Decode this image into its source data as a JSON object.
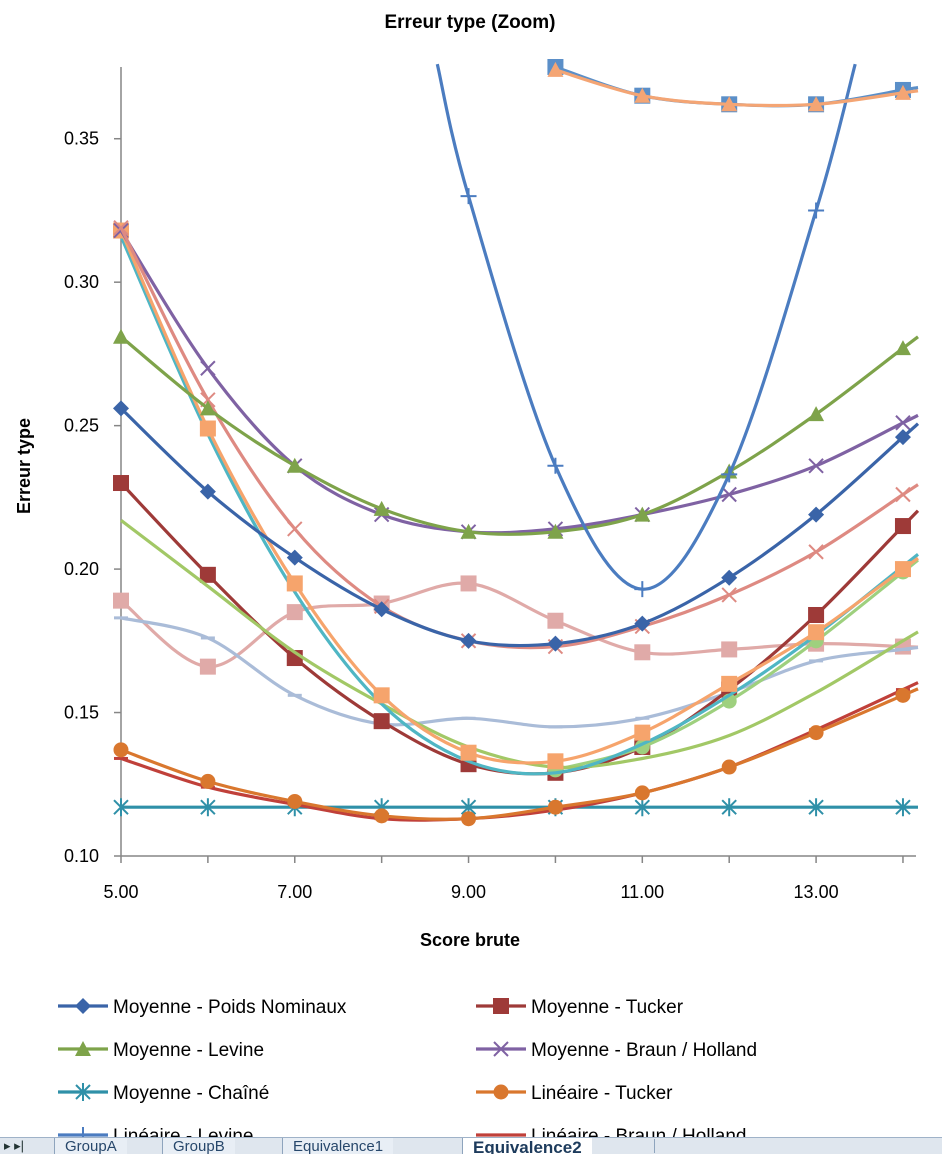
{
  "chart_data": {
    "type": "line",
    "title": "Erreur type (Zoom)",
    "xlabel": "Score brute",
    "ylabel": "Erreur type",
    "xlim": [
      5,
      14.15
    ],
    "ylim": [
      0.1,
      0.375
    ],
    "x_ticks": [
      "5.00",
      "7.00",
      "9.00",
      "11.00",
      "13.00"
    ],
    "y_ticks": [
      "0.10",
      "0.15",
      "0.20",
      "0.25",
      "0.30",
      "0.35"
    ],
    "x_tick_values": [
      5,
      7,
      9,
      11,
      13
    ],
    "y_tick_values": [
      0.1,
      0.15,
      0.2,
      0.25,
      0.3,
      0.35
    ],
    "grid": false,
    "legend_position": "bottom",
    "series": [
      {
        "name": "Moyenne - Poids Nominaux",
        "color": "#3a64a8",
        "marker": "diamond",
        "x": [
          5,
          6,
          7,
          8,
          9,
          10,
          11,
          12,
          13,
          14
        ],
        "y": [
          0.256,
          0.227,
          0.204,
          0.186,
          0.175,
          0.174,
          0.181,
          0.197,
          0.219,
          0.246
        ]
      },
      {
        "name": "Moyenne - Tucker",
        "color": "#9e3a38",
        "marker": "square",
        "x": [
          5,
          6,
          7,
          8,
          9,
          10,
          11,
          12,
          13,
          14
        ],
        "y": [
          0.23,
          0.198,
          0.169,
          0.147,
          0.132,
          0.129,
          0.138,
          0.158,
          0.184,
          0.215
        ]
      },
      {
        "name": "Moyenne - Levine",
        "color": "#7ea34a",
        "marker": "triangle",
        "x": [
          5,
          6,
          7,
          8,
          9,
          10,
          11,
          12,
          13,
          14
        ],
        "y": [
          0.281,
          0.256,
          0.236,
          0.221,
          0.213,
          0.213,
          0.219,
          0.234,
          0.254,
          0.277
        ]
      },
      {
        "name": "Moyenne - Braun / Holland",
        "color": "#7f62a3",
        "marker": "x",
        "x": [
          5,
          6,
          7,
          8,
          9,
          10,
          11,
          12,
          13,
          14
        ],
        "y": [
          0.318,
          0.27,
          0.236,
          0.219,
          0.213,
          0.214,
          0.219,
          0.226,
          0.236,
          0.251
        ]
      },
      {
        "name": "Moyenne - Chaîné",
        "color": "#2f90a8",
        "marker": "star",
        "x": [
          5,
          6,
          7,
          8,
          9,
          10,
          11,
          12,
          13,
          14
        ],
        "y": [
          0.117,
          0.117,
          0.117,
          0.117,
          0.117,
          0.117,
          0.117,
          0.117,
          0.117,
          0.117
        ]
      },
      {
        "name": "Linéaire - Tucker",
        "color": "#d9772e",
        "marker": "circle",
        "x": [
          5,
          6,
          7,
          8,
          9,
          10,
          11,
          12,
          13,
          14
        ],
        "y": [
          0.137,
          0.126,
          0.119,
          0.114,
          0.113,
          0.117,
          0.122,
          0.131,
          0.143,
          0.156
        ]
      },
      {
        "name": "Linéaire - Levine",
        "color": "#4b7cc0",
        "marker": "plus",
        "x": [
          9,
          10,
          11,
          12,
          13
        ],
        "y": [
          0.33,
          0.236,
          0.193,
          0.233,
          0.325
        ]
      },
      {
        "name": "Linéaire - Braun / Holland",
        "color": "#c0403a",
        "marker": "dash",
        "x": [
          5,
          6,
          7,
          8,
          9,
          10,
          11,
          12,
          13,
          14
        ],
        "y": [
          0.134,
          0.124,
          0.118,
          0.113,
          0.113,
          0.116,
          0.122,
          0.131,
          0.144,
          0.158
        ]
      },
      {
        "color": "#de8a82",
        "marker": "x",
        "x": [
          5,
          6,
          7,
          8,
          9,
          10,
          11,
          12,
          13,
          14
        ],
        "y": [
          0.319,
          0.259,
          0.214,
          0.187,
          0.175,
          0.173,
          0.18,
          0.191,
          0.206,
          0.226
        ]
      },
      {
        "color": "#a2c866",
        "marker": "none",
        "x": [
          5,
          6,
          7,
          8,
          9,
          10,
          11,
          12,
          13,
          14
        ],
        "y": [
          0.217,
          0.194,
          0.171,
          0.153,
          0.138,
          0.131,
          0.134,
          0.142,
          0.157,
          0.175
        ]
      },
      {
        "color": "#4fb6c4",
        "marker": "none",
        "x": [
          5,
          6,
          7,
          8,
          9,
          10,
          11,
          12,
          13,
          14
        ],
        "y": [
          0.316,
          0.247,
          0.192,
          0.153,
          0.133,
          0.129,
          0.139,
          0.156,
          0.177,
          0.201
        ]
      },
      {
        "color": "#f6a46c",
        "marker": "square",
        "x": [
          5,
          6,
          7,
          8,
          9,
          10,
          11,
          12,
          13,
          14
        ],
        "y": [
          0.318,
          0.249,
          0.195,
          0.156,
          0.136,
          0.133,
          0.143,
          0.16,
          0.178,
          0.2
        ]
      },
      {
        "color": "#aabcd8",
        "marker": "dash",
        "x": [
          5,
          6,
          7,
          8,
          9,
          10,
          11,
          12,
          13,
          14
        ],
        "y": [
          0.183,
          0.176,
          0.156,
          0.146,
          0.148,
          0.145,
          0.148,
          0.157,
          0.168,
          0.172
        ]
      },
      {
        "color": "#e0aaa8",
        "marker": "square",
        "x": [
          5,
          6,
          7,
          8,
          9,
          10,
          11,
          12,
          13,
          14
        ],
        "y": [
          0.189,
          0.166,
          0.185,
          0.188,
          0.195,
          0.182,
          0.171,
          0.172,
          0.174,
          0.173
        ]
      },
      {
        "color": "#9ed07e",
        "marker": "circle",
        "x": [
          10,
          11,
          12,
          13,
          14
        ],
        "y": [
          0.13,
          0.138,
          0.154,
          0.175,
          0.199
        ]
      },
      {
        "color": "#5b8fc8",
        "marker": "square",
        "x": [
          10,
          11,
          12,
          13,
          14
        ],
        "y": [
          0.375,
          0.365,
          0.362,
          0.362,
          0.367
        ]
      },
      {
        "color": "#f4a574",
        "marker": "triangle",
        "x": [
          10,
          11,
          12,
          13,
          14
        ],
        "y": [
          0.374,
          0.365,
          0.362,
          0.362,
          0.366
        ]
      }
    ]
  },
  "sheet_tabs": [
    "GroupA",
    "GroupB",
    "Equivalence1",
    "Equivalence2"
  ],
  "active_tab": "Equivalence2",
  "nav_glyph": "▸ ▸|"
}
